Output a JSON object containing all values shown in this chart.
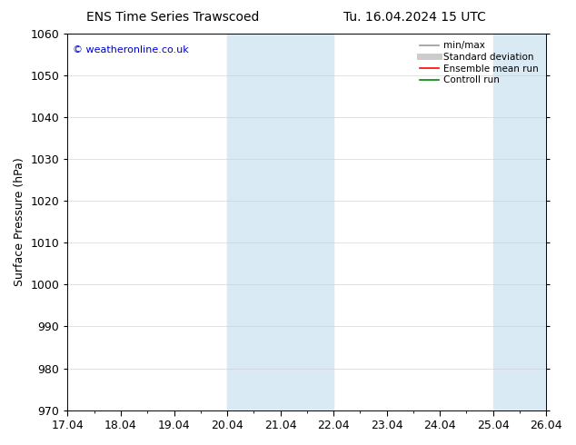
{
  "title_left": "ENS Time Series Trawscoed",
  "title_right": "Tu. 16.04.2024 15 UTC",
  "ylabel": "Surface Pressure (hPa)",
  "ylim": [
    970,
    1060
  ],
  "yticks": [
    970,
    980,
    990,
    1000,
    1010,
    1020,
    1030,
    1040,
    1050,
    1060
  ],
  "xtick_labels": [
    "17.04",
    "18.04",
    "19.04",
    "20.04",
    "21.04",
    "22.04",
    "23.04",
    "24.04",
    "25.04",
    "26.04"
  ],
  "shaded_bands": [
    {
      "xstart": 3,
      "xend": 5,
      "color": "#daeaf5"
    },
    {
      "xstart": 8,
      "xend": 9,
      "color": "#daeaf5"
    }
  ],
  "watermark": "© weatheronline.co.uk",
  "watermark_color": "#0000cc",
  "legend_items": [
    {
      "label": "min/max",
      "color": "#999999",
      "lw": 1.2,
      "type": "line"
    },
    {
      "label": "Standard deviation",
      "color": "#cccccc",
      "lw": 5,
      "type": "line"
    },
    {
      "label": "Ensemble mean run",
      "color": "#ff0000",
      "lw": 1.2,
      "type": "line"
    },
    {
      "label": "Controll run",
      "color": "#008800",
      "lw": 1.2,
      "type": "line"
    }
  ],
  "bg_color": "#ffffff",
  "font_size": 9,
  "title_fontsize": 10
}
